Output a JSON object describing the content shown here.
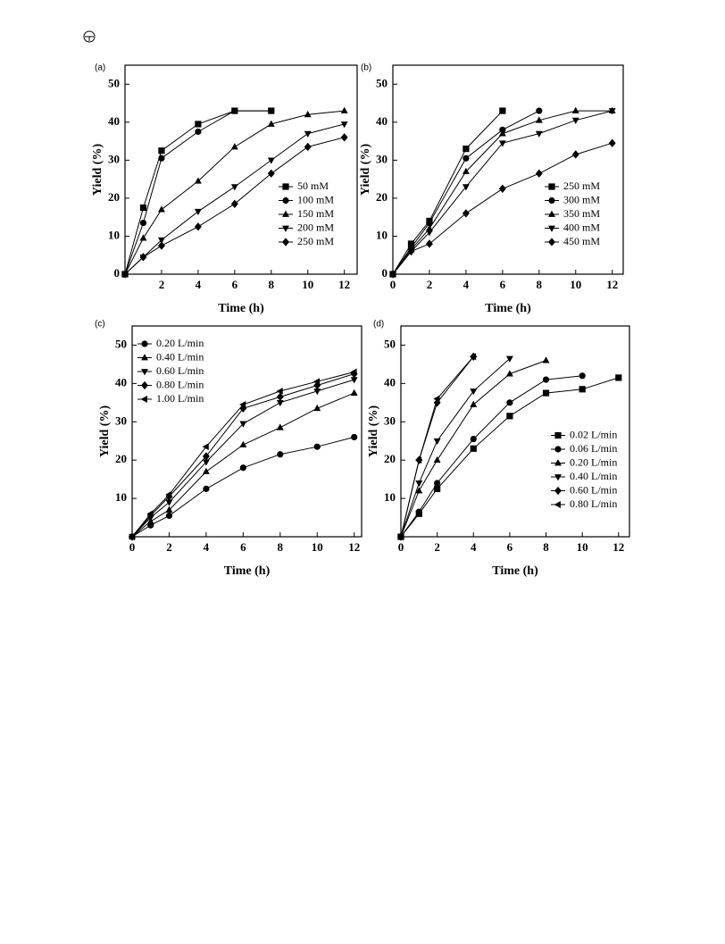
{
  "chart_data": [
    {
      "type": "line",
      "panel": "(a)",
      "xlabel": "Time (h)",
      "ylabel": "Yield (%)",
      "xlim": [
        0,
        12.7
      ],
      "ylim": [
        0,
        55
      ],
      "xticks": [
        2,
        4,
        6,
        8,
        10,
        12
      ],
      "yticks": [
        0,
        10,
        20,
        30,
        40,
        50
      ],
      "legend": "lower right",
      "series": [
        {
          "name": "50 mM",
          "color": "#000000",
          "marker": "square",
          "x": [
            0,
            1,
            2,
            4,
            6,
            8
          ],
          "values": [
            0,
            17.5,
            32.5,
            39.5,
            43,
            43
          ]
        },
        {
          "name": "100 mM",
          "color": "#000000",
          "marker": "circle",
          "x": [
            0,
            1,
            2,
            4,
            6,
            8
          ],
          "values": [
            0,
            13.5,
            30.5,
            37.5,
            43,
            43
          ]
        },
        {
          "name": "150 mM",
          "color": "#000000",
          "marker": "triangle-up",
          "x": [
            0,
            1,
            2,
            4,
            6,
            8,
            10,
            12
          ],
          "values": [
            0,
            9.5,
            17,
            24.5,
            33.5,
            39.5,
            42,
            43
          ]
        },
        {
          "name": "200 mM",
          "color": "#000000",
          "marker": "triangle-down",
          "x": [
            0,
            1,
            2,
            4,
            6,
            8,
            10,
            12
          ],
          "values": [
            0,
            4.5,
            9,
            16.5,
            23,
            30,
            37,
            39.5
          ]
        },
        {
          "name": "250 mM",
          "color": "#000000",
          "marker": "diamond",
          "x": [
            0,
            1,
            2,
            4,
            6,
            8,
            10,
            12
          ],
          "values": [
            0,
            4.5,
            7.5,
            12.5,
            18.5,
            26.5,
            33.5,
            36
          ]
        }
      ]
    },
    {
      "type": "line",
      "panel": "(b)",
      "xlabel": "Time (h)",
      "ylabel": "Yield (%)",
      "xlim": [
        0,
        12.6
      ],
      "ylim": [
        0,
        55
      ],
      "xticks": [
        0,
        2,
        4,
        6,
        8,
        10,
        12
      ],
      "yticks": [
        0,
        10,
        20,
        30,
        40,
        50
      ],
      "legend": "lower right",
      "series": [
        {
          "name": "250 mM",
          "color": "#000000",
          "marker": "square",
          "x": [
            0,
            1,
            2,
            4,
            6
          ],
          "values": [
            0,
            8,
            14,
            33,
            43
          ]
        },
        {
          "name": "300 mM",
          "color": "#000000",
          "marker": "circle",
          "x": [
            0,
            1,
            2,
            4,
            6,
            8
          ],
          "values": [
            0,
            7,
            13.5,
            30.5,
            38,
            43
          ]
        },
        {
          "name": "350 mM",
          "color": "#000000",
          "marker": "triangle-up",
          "x": [
            0,
            1,
            2,
            4,
            6,
            8,
            10,
            12
          ],
          "values": [
            0,
            6.5,
            12,
            27,
            37,
            40.5,
            43,
            43
          ]
        },
        {
          "name": "400 mM",
          "color": "#000000",
          "marker": "triangle-down",
          "x": [
            0,
            1,
            2,
            4,
            6,
            8,
            10,
            12
          ],
          "values": [
            0,
            6,
            11,
            23,
            34.5,
            37,
            40.5,
            43
          ]
        },
        {
          "name": "450 mM",
          "color": "#000000",
          "marker": "diamond",
          "x": [
            0,
            1,
            2,
            4,
            6,
            8,
            10,
            12
          ],
          "values": [
            0,
            6,
            8,
            16,
            22.5,
            26.5,
            31.5,
            34.5
          ]
        }
      ]
    },
    {
      "type": "line",
      "panel": "(c)",
      "xlabel": "Time (h)",
      "ylabel": "Yield (%)",
      "xlim": [
        0,
        12.4
      ],
      "ylim": [
        0,
        55
      ],
      "xticks": [
        0,
        2,
        4,
        6,
        8,
        10,
        12
      ],
      "yticks": [
        10,
        20,
        30,
        40,
        50
      ],
      "legend": "upper left",
      "series": [
        {
          "name": "0.20 L/min",
          "color": "#000000",
          "marker": "circle",
          "x": [
            0,
            1,
            2,
            4,
            6,
            8,
            10,
            12
          ],
          "values": [
            0,
            3,
            5.5,
            12.5,
            18,
            21.5,
            23.5,
            26
          ]
        },
        {
          "name": "0.40 L/min",
          "color": "#000000",
          "marker": "triangle-up",
          "x": [
            0,
            1,
            2,
            4,
            6,
            8,
            10,
            12
          ],
          "values": [
            0,
            4,
            7,
            17,
            24,
            28.5,
            33.5,
            37.5
          ]
        },
        {
          "name": "0.60 L/min",
          "color": "#000000",
          "marker": "triangle-down",
          "x": [
            0,
            1,
            2,
            4,
            6,
            8,
            10,
            12
          ],
          "values": [
            0,
            5,
            9,
            19.5,
            29.5,
            35,
            38,
            41
          ]
        },
        {
          "name": "0.80 L/min",
          "color": "#000000",
          "marker": "diamond",
          "x": [
            0,
            1,
            2,
            4,
            6,
            8,
            10,
            12
          ],
          "values": [
            0,
            5.5,
            10.5,
            21,
            33.5,
            36.5,
            39.5,
            42.5
          ]
        },
        {
          "name": "1.00 L/min",
          "color": "#000000",
          "marker": "triangle-left",
          "x": [
            0,
            1,
            2,
            4,
            6,
            8,
            10,
            12
          ],
          "values": [
            0,
            6,
            11,
            23.5,
            34.5,
            38,
            40.5,
            43
          ]
        }
      ]
    },
    {
      "type": "line",
      "panel": "(d)",
      "xlabel": "Time (h)",
      "ylabel": "Yield (%)",
      "xlim": [
        0,
        12.6
      ],
      "ylim": [
        0,
        55
      ],
      "xticks": [
        0,
        2,
        4,
        6,
        8,
        10,
        12
      ],
      "yticks": [
        10,
        20,
        30,
        40,
        50
      ],
      "legend": "lower right",
      "series": [
        {
          "name": "0.02 L/min",
          "color": "#000000",
          "marker": "square",
          "x": [
            0,
            1,
            2,
            4,
            6,
            8,
            10,
            12
          ],
          "values": [
            0,
            6,
            12.5,
            23,
            31.5,
            37.5,
            38.5,
            41.5
          ]
        },
        {
          "name": "0.06 L/min",
          "color": "#000000",
          "marker": "circle",
          "x": [
            0,
            1,
            2,
            4,
            6,
            8,
            10
          ],
          "values": [
            0,
            6.5,
            14,
            25.5,
            35,
            41,
            42
          ]
        },
        {
          "name": "0.20 L/min",
          "color": "#000000",
          "marker": "triangle-up",
          "x": [
            0,
            1,
            2,
            4,
            6,
            8
          ],
          "values": [
            0,
            12,
            20,
            34.5,
            42.5,
            46
          ]
        },
        {
          "name": "0.40 L/min",
          "color": "#000000",
          "marker": "triangle-down",
          "x": [
            0,
            1,
            2,
            4,
            6
          ],
          "values": [
            0,
            14,
            25,
            38,
            46.5
          ]
        },
        {
          "name": "0.60 L/min",
          "color": "#000000",
          "marker": "diamond",
          "x": [
            0,
            1,
            2,
            4
          ],
          "values": [
            0,
            20,
            35,
            47
          ]
        },
        {
          "name": "0.80 L/min",
          "color": "#000000",
          "marker": "triangle-left",
          "x": [
            0,
            1,
            2,
            4
          ],
          "values": [
            0,
            20,
            36,
            47
          ]
        }
      ]
    }
  ]
}
